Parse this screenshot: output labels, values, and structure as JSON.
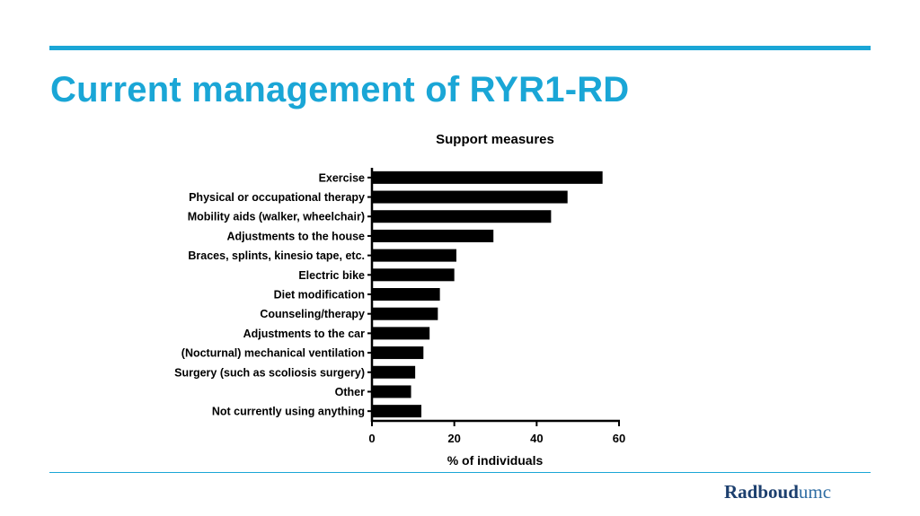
{
  "slide": {
    "title": "Current management of RYR1-RD",
    "accent_color": "#1aa6d6"
  },
  "logo": {
    "part_a": "Radboud",
    "part_b": "umc"
  },
  "chart_data": {
    "type": "bar",
    "orientation": "horizontal",
    "title": "Support measures",
    "xlabel": "% of individuals",
    "ylabel": "",
    "xlim": [
      0,
      60
    ],
    "xticks": [
      0,
      20,
      40,
      60
    ],
    "grid": false,
    "bar_color": "#000000",
    "categories": [
      "Exercise",
      "Physical or occupational therapy",
      "Mobility aids (walker, wheelchair)",
      "Adjustments to the house",
      "Braces, splints, kinesio tape, etc.",
      "Electric bike",
      "Diet modification",
      "Counseling/therapy",
      "Adjustments to the car",
      "(Nocturnal) mechanical ventilation",
      "Surgery (such as scoliosis surgery)",
      "Other",
      "Not currently using anything"
    ],
    "values": [
      56,
      47.5,
      43.5,
      29.5,
      20.5,
      20,
      16.5,
      16,
      14,
      12.5,
      10.5,
      9.5,
      12
    ]
  }
}
